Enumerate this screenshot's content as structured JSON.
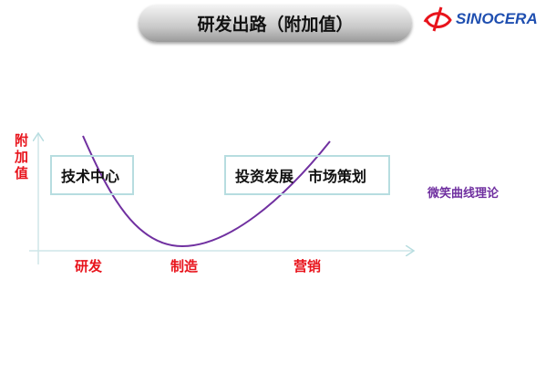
{
  "title": "研发出路（附加值）",
  "logo": {
    "text": "SINOCERA",
    "colors": {
      "text": "#1f4fb0",
      "mark": "#e8141c"
    }
  },
  "diagram": {
    "y_axis_label": "附加值",
    "x_labels": [
      "研发",
      "制造",
      "营销"
    ],
    "left_box": "技术中心",
    "right_box": [
      "投资发展",
      "市场策划"
    ],
    "curve_label": "微笑曲线理论",
    "colors": {
      "curve": "#7030a0",
      "labels": "#e8141c",
      "axes": "#b7dde0"
    }
  }
}
